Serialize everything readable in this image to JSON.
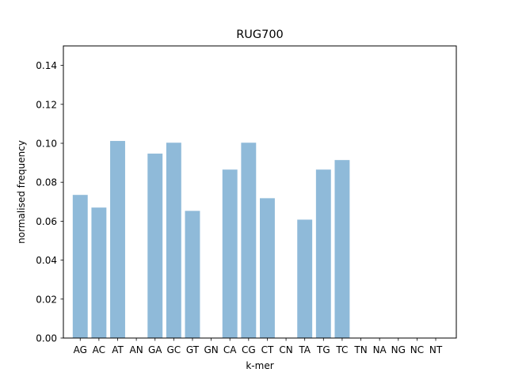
{
  "chart_data": {
    "type": "bar",
    "title": "RUG700",
    "xlabel": "k-mer",
    "ylabel": "normalised frequency",
    "categories": [
      "AG",
      "AC",
      "AT",
      "AN",
      "GA",
      "GC",
      "GT",
      "GN",
      "CA",
      "CG",
      "CT",
      "CN",
      "TA",
      "TG",
      "TC",
      "TN",
      "NA",
      "NG",
      "NC",
      "NT"
    ],
    "values": [
      0.0735,
      0.067,
      0.1012,
      0,
      0.0947,
      0.1003,
      0.0653,
      0,
      0.0865,
      0.1003,
      0.0718,
      0,
      0.0608,
      0.0865,
      0.0914,
      0,
      0,
      0,
      0,
      0
    ],
    "ylim": [
      0,
      0.15
    ],
    "yticks": [
      "0.00",
      "0.02",
      "0.04",
      "0.06",
      "0.08",
      "0.10",
      "0.12",
      "0.14"
    ],
    "bar_color": "#8fbad9",
    "grid": false,
    "legend": "none"
  }
}
